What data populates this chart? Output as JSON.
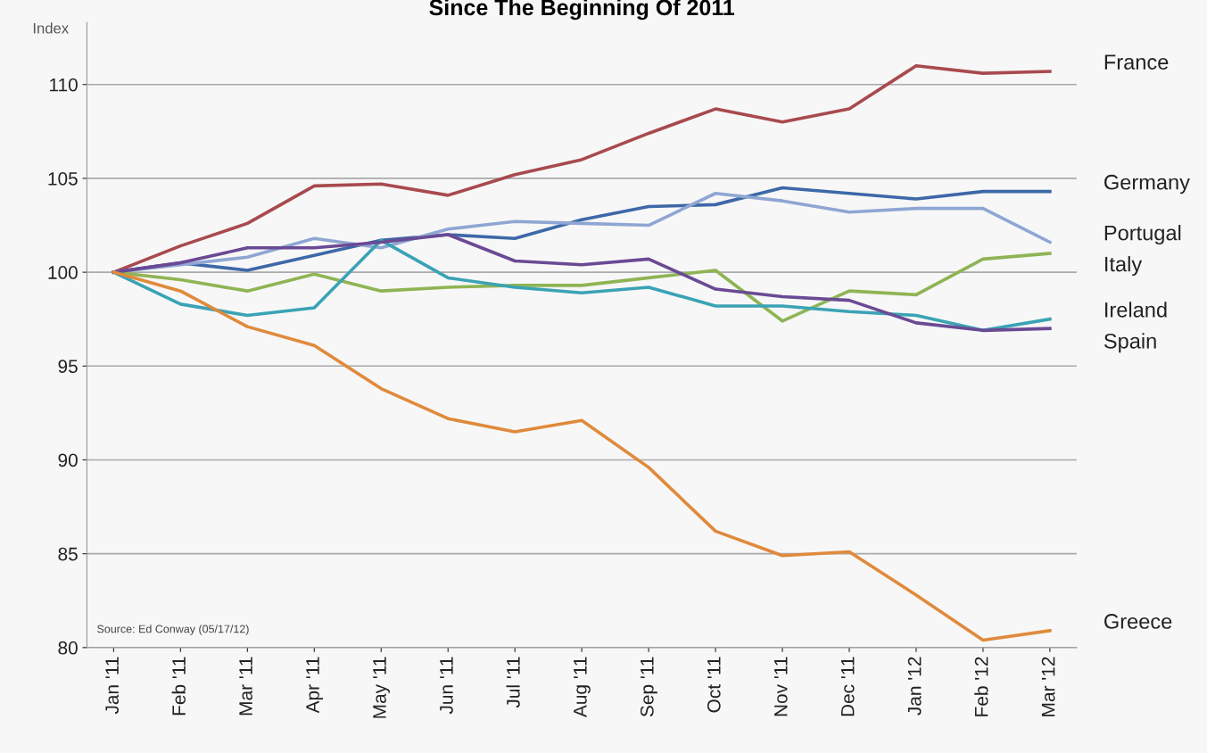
{
  "chart_data": {
    "type": "line",
    "title": "Since The Beginning Of 2011",
    "ylabel": "Index",
    "categories": [
      "Jan '11",
      "Feb '11",
      "Mar '11",
      "Apr '11",
      "May '11",
      "Jun '11",
      "Jul '11",
      "Aug '11",
      "Sep '11",
      "Oct '11",
      "Nov '11",
      "Dec '11",
      "Jan '12",
      "Feb '12",
      "Mar '12"
    ],
    "series": [
      {
        "name": "France",
        "color": "#a84a4e",
        "values": [
          100,
          101.4,
          102.6,
          104.6,
          104.7,
          104.1,
          105.2,
          106.0,
          107.4,
          108.7,
          108.0,
          108.7,
          111.0,
          110.6,
          110.7
        ]
      },
      {
        "name": "Germany",
        "color": "#3d68a8",
        "values": [
          100,
          100.5,
          100.1,
          100.9,
          101.7,
          102.0,
          101.8,
          102.8,
          103.5,
          103.6,
          104.5,
          104.2,
          103.9,
          104.3,
          104.3
        ]
      },
      {
        "name": "Portugal",
        "color": "#8fa6d4",
        "values": [
          100,
          100.4,
          100.8,
          101.8,
          101.3,
          102.3,
          102.7,
          102.6,
          102.5,
          104.2,
          103.8,
          103.2,
          103.4,
          103.4,
          101.6
        ]
      },
      {
        "name": "Italy",
        "color": "#8fb454",
        "values": [
          100,
          99.6,
          99.0,
          99.9,
          99.0,
          99.2,
          99.3,
          99.3,
          99.7,
          100.1,
          97.4,
          99.0,
          98.8,
          100.7,
          101.0
        ]
      },
      {
        "name": "Ireland",
        "color": "#3aa3b5",
        "values": [
          100,
          98.3,
          97.7,
          98.1,
          101.7,
          99.7,
          99.2,
          98.9,
          99.2,
          98.2,
          98.2,
          97.9,
          97.7,
          96.9,
          97.5
        ]
      },
      {
        "name": "Spain",
        "color": "#6a4a94",
        "values": [
          100,
          100.5,
          101.3,
          101.3,
          101.6,
          102.0,
          100.6,
          100.4,
          100.7,
          99.1,
          98.7,
          98.5,
          97.3,
          96.9,
          97.0
        ]
      },
      {
        "name": "Greece",
        "color": "#e08a3c",
        "values": [
          100,
          99.0,
          97.1,
          96.1,
          93.8,
          92.2,
          91.5,
          92.1,
          89.6,
          86.2,
          84.9,
          85.1,
          82.8,
          80.4,
          80.9
        ]
      }
    ],
    "ylim": [
      80,
      113.3
    ],
    "yticks": [
      80,
      85,
      90,
      95,
      100,
      105,
      110
    ],
    "grid": "y",
    "legend": "right",
    "annotations": [
      {
        "text": "Source: Ed Conway (05/17/12)"
      }
    ]
  }
}
